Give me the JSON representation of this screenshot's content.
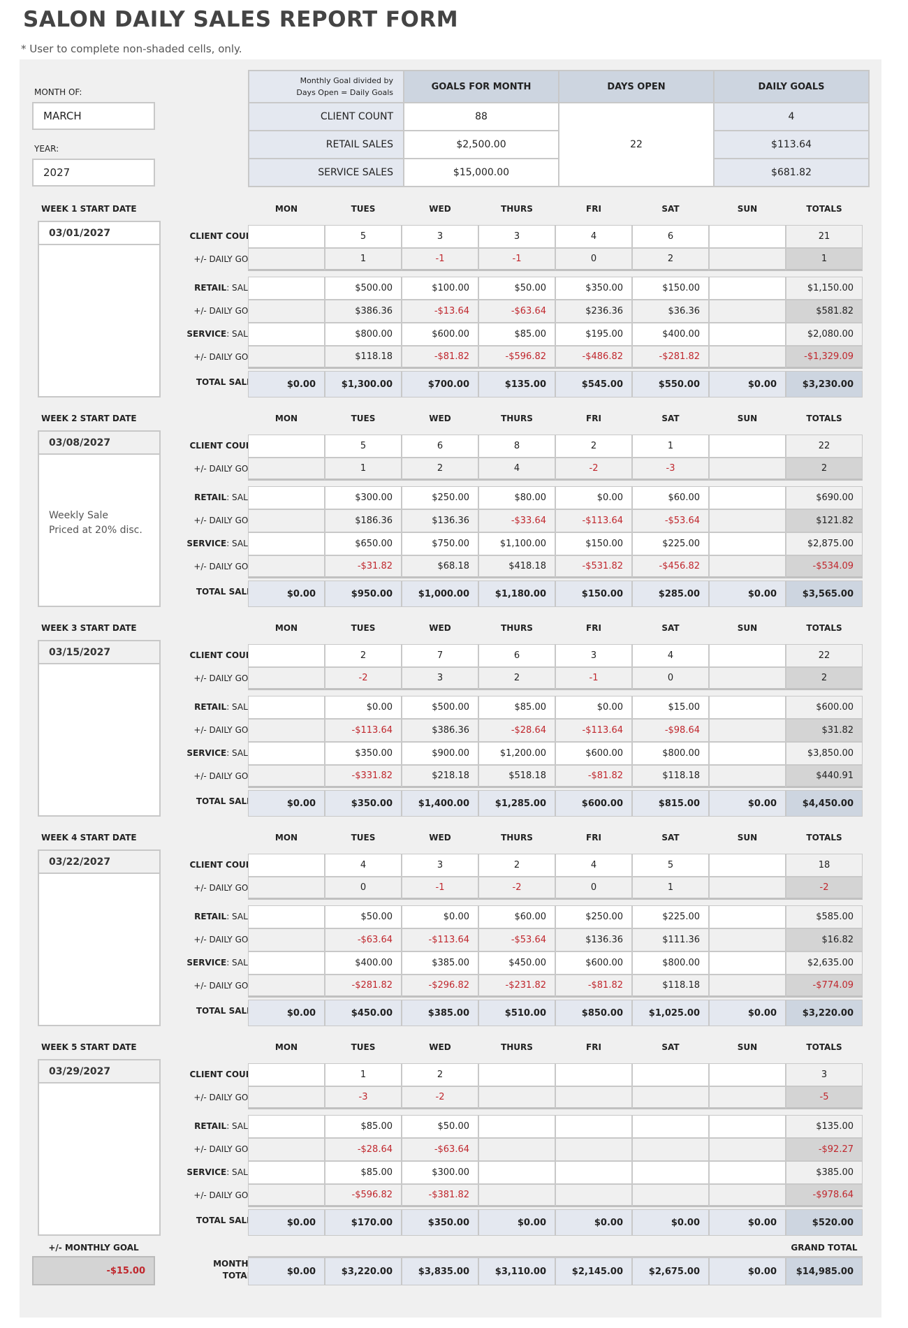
{
  "title": "SALON DAILY SALES REPORT FORM",
  "note": "* User to complete non-shaded cells, only.",
  "month_label": "MONTH OF:",
  "month": "MARCH",
  "year_label": "YEAR:",
  "year": "2027",
  "goals": {
    "explain": "Monthly Goal divided by Days Open =  Daily Goals",
    "headers": [
      "GOALS FOR MONTH",
      "DAYS OPEN",
      "DAILY GOALS"
    ],
    "days_open": "22",
    "rows": [
      {
        "label": "CLIENT COUNT",
        "goal": "88",
        "daily": "4"
      },
      {
        "label": "RETAIL SALES",
        "goal": "$2,500.00",
        "daily": "$113.64"
      },
      {
        "label": "SERVICE SALES",
        "goal": "$15,000.00",
        "daily": "$681.82"
      }
    ]
  },
  "days": [
    "MON",
    "TUES",
    "WED",
    "THURS",
    "FRI",
    "SAT",
    "SUN",
    "TOTALS"
  ],
  "row_labels": [
    {
      "bold": "CLIENT COUNT",
      "rest": ""
    },
    {
      "bold": "",
      "rest": "+/- DAILY GOAL"
    },
    {
      "bold": "RETAIL",
      "rest": ": SALES"
    },
    {
      "bold": "",
      "rest": "+/- DAILY GOAL"
    },
    {
      "bold": "SERVICE",
      "rest": ": SALES"
    },
    {
      "bold": "",
      "rest": "+/- DAILY GOAL"
    },
    {
      "bold": "TOTAL SALES",
      "rest": ""
    }
  ],
  "weeks": [
    {
      "title": "WEEK 1 START DATE",
      "date": "03/01/2027",
      "note": "",
      "rows": [
        [
          "",
          "5",
          "3",
          "3",
          "4",
          "6",
          "",
          "21"
        ],
        [
          "",
          "1",
          "-1",
          "-1",
          "0",
          "2",
          "",
          "1"
        ],
        [
          "",
          "$500.00",
          "$100.00",
          "$50.00",
          "$350.00",
          "$150.00",
          "",
          "$1,150.00"
        ],
        [
          "",
          "$386.36",
          "-$13.64",
          "-$63.64",
          "$236.36",
          "$36.36",
          "",
          "$581.82"
        ],
        [
          "",
          "$800.00",
          "$600.00",
          "$85.00",
          "$195.00",
          "$400.00",
          "",
          "$2,080.00"
        ],
        [
          "",
          "$118.18",
          "-$81.82",
          "-$596.82",
          "-$486.82",
          "-$281.82",
          "",
          "-$1,329.09"
        ],
        [
          "$0.00",
          "$1,300.00",
          "$700.00",
          "$135.00",
          "$545.00",
          "$550.00",
          "$0.00",
          "$3,230.00"
        ]
      ]
    },
    {
      "title": "WEEK 2 START DATE",
      "date": "03/08/2027",
      "note": "Weekly Sale\nPriced at 20% disc.",
      "rows": [
        [
          "",
          "5",
          "6",
          "8",
          "2",
          "1",
          "",
          "22"
        ],
        [
          "",
          "1",
          "2",
          "4",
          "-2",
          "-3",
          "",
          "2"
        ],
        [
          "",
          "$300.00",
          "$250.00",
          "$80.00",
          "$0.00",
          "$60.00",
          "",
          "$690.00"
        ],
        [
          "",
          "$186.36",
          "$136.36",
          "-$33.64",
          "-$113.64",
          "-$53.64",
          "",
          "$121.82"
        ],
        [
          "",
          "$650.00",
          "$750.00",
          "$1,100.00",
          "$150.00",
          "$225.00",
          "",
          "$2,875.00"
        ],
        [
          "",
          "-$31.82",
          "$68.18",
          "$418.18",
          "-$531.82",
          "-$456.82",
          "",
          "-$534.09"
        ],
        [
          "$0.00",
          "$950.00",
          "$1,000.00",
          "$1,180.00",
          "$150.00",
          "$285.00",
          "$0.00",
          "$3,565.00"
        ]
      ]
    },
    {
      "title": "WEEK 3 START DATE",
      "date": "03/15/2027",
      "note": "",
      "rows": [
        [
          "",
          "2",
          "7",
          "6",
          "3",
          "4",
          "",
          "22"
        ],
        [
          "",
          "-2",
          "3",
          "2",
          "-1",
          "0",
          "",
          "2"
        ],
        [
          "",
          "$0.00",
          "$500.00",
          "$85.00",
          "$0.00",
          "$15.00",
          "",
          "$600.00"
        ],
        [
          "",
          "-$113.64",
          "$386.36",
          "-$28.64",
          "-$113.64",
          "-$98.64",
          "",
          "$31.82"
        ],
        [
          "",
          "$350.00",
          "$900.00",
          "$1,200.00",
          "$600.00",
          "$800.00",
          "",
          "$3,850.00"
        ],
        [
          "",
          "-$331.82",
          "$218.18",
          "$518.18",
          "-$81.82",
          "$118.18",
          "",
          "$440.91"
        ],
        [
          "$0.00",
          "$350.00",
          "$1,400.00",
          "$1,285.00",
          "$600.00",
          "$815.00",
          "$0.00",
          "$4,450.00"
        ]
      ]
    },
    {
      "title": "WEEK 4 START DATE",
      "date": "03/22/2027",
      "note": "",
      "rows": [
        [
          "",
          "4",
          "3",
          "2",
          "4",
          "5",
          "",
          "18"
        ],
        [
          "",
          "0",
          "-1",
          "-2",
          "0",
          "1",
          "",
          "-2"
        ],
        [
          "",
          "$50.00",
          "$0.00",
          "$60.00",
          "$250.00",
          "$225.00",
          "",
          "$585.00"
        ],
        [
          "",
          "-$63.64",
          "-$113.64",
          "-$53.64",
          "$136.36",
          "$111.36",
          "",
          "$16.82"
        ],
        [
          "",
          "$400.00",
          "$385.00",
          "$450.00",
          "$600.00",
          "$800.00",
          "",
          "$2,635.00"
        ],
        [
          "",
          "-$281.82",
          "-$296.82",
          "-$231.82",
          "-$81.82",
          "$118.18",
          "",
          "-$774.09"
        ],
        [
          "$0.00",
          "$450.00",
          "$385.00",
          "$510.00",
          "$850.00",
          "$1,025.00",
          "$0.00",
          "$3,220.00"
        ]
      ]
    },
    {
      "title": "WEEK 5 START DATE",
      "date": "03/29/2027",
      "note": "",
      "rows": [
        [
          "",
          "1",
          "2",
          "",
          "",
          "",
          "",
          "3"
        ],
        [
          "",
          "-3",
          "-2",
          "",
          "",
          "",
          "",
          "-5"
        ],
        [
          "",
          "$85.00",
          "$50.00",
          "",
          "",
          "",
          "",
          "$135.00"
        ],
        [
          "",
          "-$28.64",
          "-$63.64",
          "",
          "",
          "",
          "",
          "-$92.27"
        ],
        [
          "",
          "$85.00",
          "$300.00",
          "",
          "",
          "",
          "",
          "$385.00"
        ],
        [
          "",
          "-$596.82",
          "-$381.82",
          "",
          "",
          "",
          "",
          "-$978.64"
        ],
        [
          "$0.00",
          "$170.00",
          "$350.00",
          "$0.00",
          "$0.00",
          "$0.00",
          "$0.00",
          "$520.00"
        ]
      ]
    }
  ],
  "monthly": {
    "goal_label": "+/- MONTHLY GOAL",
    "goal_value": "-$15.00",
    "grand_total_label": "GRAND TOTAL",
    "totals_label": "MONTHLY\nTOTALS",
    "totals": [
      "$0.00",
      "$3,220.00",
      "$3,835.00",
      "$3,110.00",
      "$2,145.00",
      "$2,675.00",
      "$0.00",
      "$14,985.00"
    ]
  },
  "colors": {
    "negative": "#c0272d",
    "header": "#cdd5e0",
    "label": "#e4e8f0"
  }
}
